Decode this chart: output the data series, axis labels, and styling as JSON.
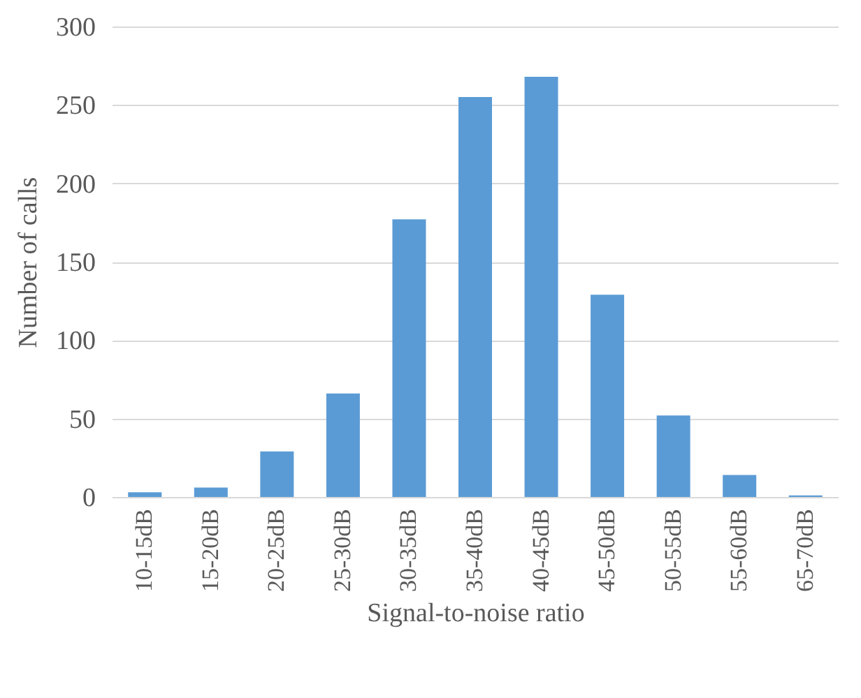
{
  "chart_data": {
    "type": "bar",
    "xlabel": "Signal-to-noise ratio",
    "ylabel": "Number of calls",
    "categories": [
      "10-15dB",
      "15-20dB",
      "20-25dB",
      "25-30dB",
      "30-35dB",
      "35-40dB",
      "40-45dB",
      "45-50dB",
      "50-55dB",
      "55-60dB",
      "65-70dB"
    ],
    "values": [
      3,
      6,
      29,
      66,
      177,
      255,
      268,
      129,
      52,
      14,
      1
    ],
    "color": "#5b9bd5",
    "ylim": [
      0,
      300
    ],
    "yticks": [
      0,
      50,
      100,
      150,
      200,
      250,
      300
    ],
    "grid": "y"
  }
}
